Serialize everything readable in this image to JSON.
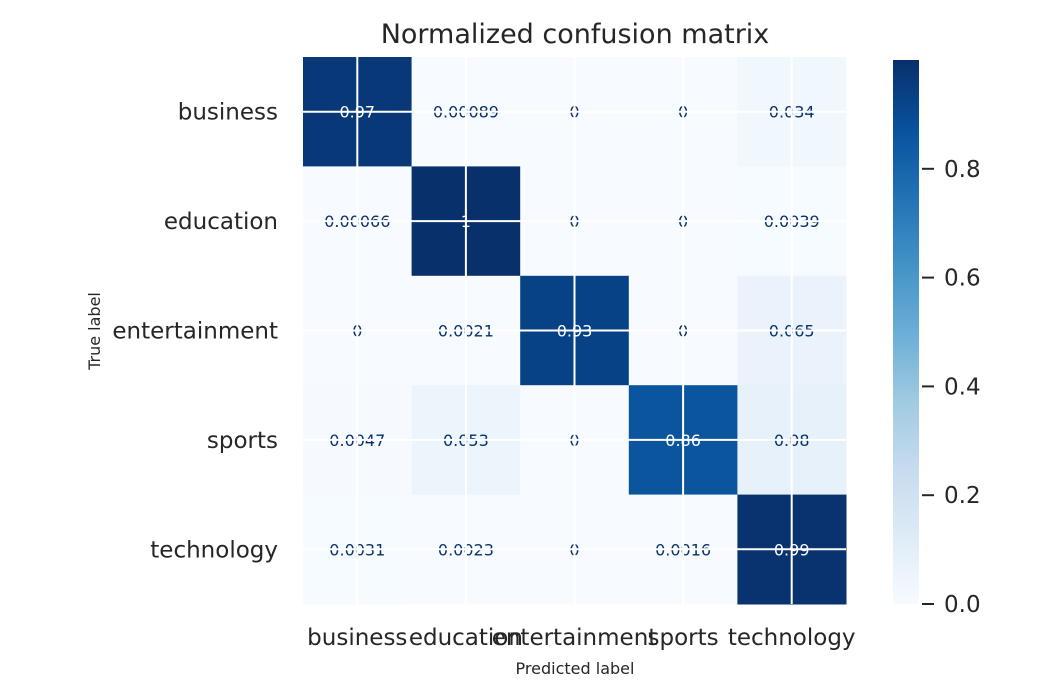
{
  "chart_data": {
    "type": "heatmap",
    "title": "Normalized confusion matrix",
    "xlabel": "Predicted label",
    "ylabel": "True label",
    "x_categories": [
      "business",
      "education",
      "entertainment",
      "sports",
      "technology"
    ],
    "y_categories": [
      "business",
      "education",
      "entertainment",
      "sports",
      "technology"
    ],
    "values": [
      [
        0.97,
        0.00089,
        0,
        0,
        0.034
      ],
      [
        0.00066,
        1,
        0,
        0,
        0.0039
      ],
      [
        0,
        0.0021,
        0.93,
        0,
        0.065
      ],
      [
        0.0047,
        0.053,
        0,
        0.86,
        0.08
      ],
      [
        0.0031,
        0.0023,
        0,
        0.0016,
        0.99
      ]
    ],
    "cell_labels": [
      [
        "0.97",
        "0.00089",
        "0",
        "0",
        "0.034"
      ],
      [
        "0.00066",
        "1",
        "0",
        "0",
        "0.0039"
      ],
      [
        "0",
        "0.0021",
        "0.93",
        "0",
        "0.065"
      ],
      [
        "0.0047",
        "0.053",
        "0",
        "0.86",
        "0.08"
      ],
      [
        "0.0031",
        "0.0023",
        "0",
        "0.0016",
        "0.99"
      ]
    ],
    "colorbar": {
      "range": [
        0,
        1
      ],
      "ticks": [
        0.0,
        0.2,
        0.4,
        0.6,
        0.8
      ],
      "tick_labels": [
        "0.0",
        "0.2",
        "0.4",
        "0.6",
        "0.8"
      ]
    },
    "colormap": "Blues",
    "grid": true
  }
}
